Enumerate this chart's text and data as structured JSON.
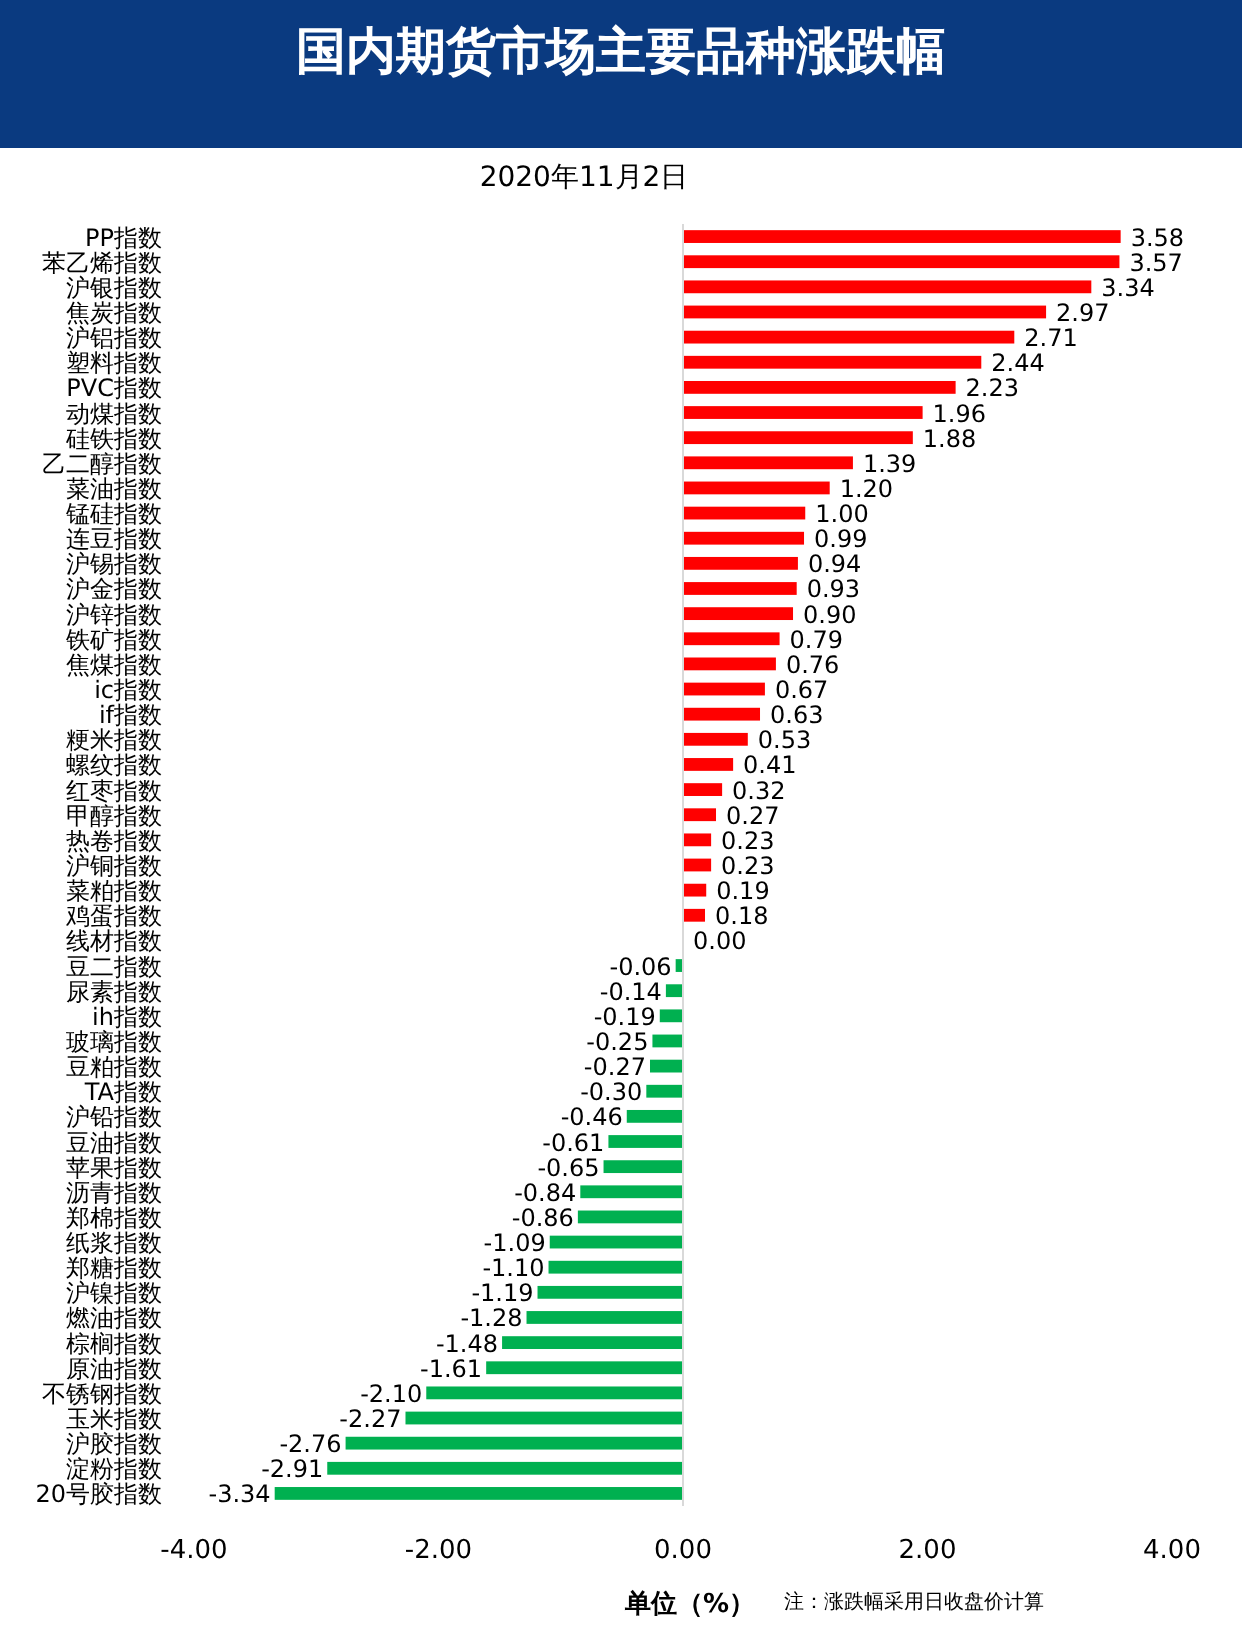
{
  "chart_data": {
    "type": "bar",
    "orientation": "horizontal",
    "title": "国内期货市场主要品种涨跌幅",
    "subtitle": "2020年11月2日",
    "xlabel": "单位（%）",
    "annotations": [
      "注：涨跌幅采用日收盘价计算"
    ],
    "categories": [
      "PP指数",
      "苯乙烯指数",
      "沪银指数",
      "焦炭指数",
      "沪铝指数",
      "塑料指数",
      "PVC指数",
      "动煤指数",
      "硅铁指数",
      "乙二醇指数",
      "菜油指数",
      "锰硅指数",
      "连豆指数",
      "沪锡指数",
      "沪金指数",
      "沪锌指数",
      "铁矿指数",
      "焦煤指数",
      "ic指数",
      "if指数",
      "粳米指数",
      "螺纹指数",
      "红枣指数",
      "甲醇指数",
      "热卷指数",
      "沪铜指数",
      "菜粕指数",
      "鸡蛋指数",
      "线材指数",
      "豆二指数",
      "尿素指数",
      "ih指数",
      "玻璃指数",
      "豆粕指数",
      "TA指数",
      "沪铅指数",
      "豆油指数",
      "苹果指数",
      "沥青指数",
      "郑棉指数",
      "纸浆指数",
      "郑糖指数",
      "沪镍指数",
      "燃油指数",
      "棕榈指数",
      "原油指数",
      "不锈钢指数",
      "玉米指数",
      "沪胶指数",
      "淀粉指数",
      "20号胶指数"
    ],
    "values": [
      3.58,
      3.57,
      3.34,
      2.97,
      2.71,
      2.44,
      2.23,
      1.96,
      1.88,
      1.39,
      1.2,
      1.0,
      0.99,
      0.94,
      0.93,
      0.9,
      0.79,
      0.76,
      0.67,
      0.63,
      0.53,
      0.41,
      0.32,
      0.27,
      0.23,
      0.23,
      0.19,
      0.18,
      0.0,
      -0.06,
      -0.14,
      -0.19,
      -0.25,
      -0.27,
      -0.3,
      -0.46,
      -0.61,
      -0.65,
      -0.84,
      -0.86,
      -1.09,
      -1.1,
      -1.19,
      -1.28,
      -1.48,
      -1.61,
      -2.1,
      -2.27,
      -2.76,
      -2.91,
      -3.34
    ],
    "value_labels": [
      "3.58",
      "3.57",
      "3.34",
      "2.97",
      "2.71",
      "2.44",
      "2.23",
      "1.96",
      "1.88",
      "1.39",
      "1.20",
      "1.00",
      "0.99",
      "0.94",
      "0.93",
      "0.90",
      "0.79",
      "0.76",
      "0.67",
      "0.63",
      "0.53",
      "0.41",
      "0.32",
      "0.27",
      "0.23",
      "0.23",
      "0.19",
      "0.18",
      "0.00",
      "-0.06",
      "-0.14",
      "-0.19",
      "-0.25",
      "-0.27",
      "-0.30",
      "-0.46",
      "-0.61",
      "-0.65",
      "-0.84",
      "-0.86",
      "-1.09",
      "-1.10",
      "-1.19",
      "-1.28",
      "-1.48",
      "-1.61",
      "-2.10",
      "-2.27",
      "-2.76",
      "-2.91",
      "-3.34"
    ],
    "colors": [
      "#ff0000",
      "#ff0000",
      "#ff0000",
      "#ff0000",
      "#ff0000",
      "#ff0000",
      "#ff0000",
      "#ff0000",
      "#ff0000",
      "#ff0000",
      "#ff0000",
      "#ff0000",
      "#ff0000",
      "#ff0000",
      "#ff0000",
      "#ff0000",
      "#ff0000",
      "#ff0000",
      "#ff0000",
      "#ff0000",
      "#ff0000",
      "#ff0000",
      "#ff0000",
      "#ff0000",
      "#ff0000",
      "#ff0000",
      "#ff0000",
      "#ff0000",
      "#ff0000",
      "#00b050",
      "#00b050",
      "#00b050",
      "#00b050",
      "#00b050",
      "#00b050",
      "#00b050",
      "#00b050",
      "#00b050",
      "#00b050",
      "#00b050",
      "#00b050",
      "#00b050",
      "#00b050",
      "#00b050",
      "#00b050",
      "#00b050",
      "#00b050",
      "#00b050",
      "#00b050",
      "#00b050",
      "#00b050"
    ],
    "xlim": [
      -4,
      4
    ],
    "xticks": [
      {
        "value": -4,
        "label": "-4.00"
      },
      {
        "value": -2,
        "label": "-2.00"
      },
      {
        "value": 0,
        "label": "0.00"
      },
      {
        "value": 2,
        "label": "2.00"
      },
      {
        "value": 4,
        "label": "4.00"
      }
    ],
    "data_labels": true
  }
}
